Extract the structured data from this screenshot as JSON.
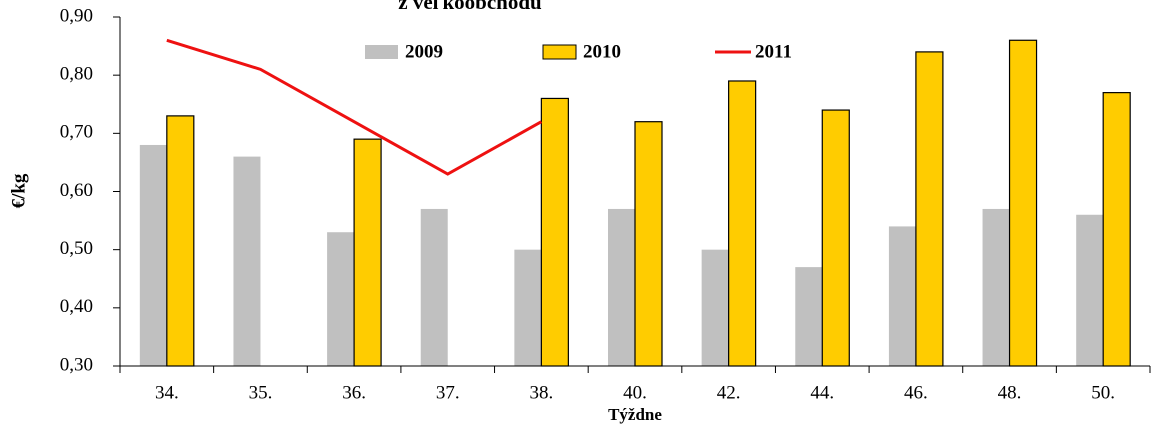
{
  "chart_data": {
    "type": "bar",
    "title": "z veľkoobchodu",
    "x_label": "Týždne",
    "y_label": "€/kg",
    "categories": [
      "34.",
      "35.",
      "36.",
      "37.",
      "38.",
      "40.",
      "42.",
      "44.",
      "46.",
      "48.",
      "50."
    ],
    "series": [
      {
        "name": "2009",
        "type": "bar",
        "color": "#c0c0c0",
        "values": [
          0.68,
          0.66,
          0.53,
          0.57,
          0.5,
          0.57,
          0.5,
          0.47,
          0.54,
          0.57,
          0.56
        ]
      },
      {
        "name": "2010",
        "type": "bar",
        "color": "#ffcc00",
        "values": [
          0.73,
          null,
          0.69,
          null,
          0.76,
          0.72,
          0.79,
          0.74,
          0.84,
          0.86,
          0.77
        ]
      },
      {
        "name": "2011",
        "type": "line",
        "color": "#ee1111",
        "values": [
          0.86,
          0.81,
          0.72,
          0.63,
          0.72,
          null,
          null,
          null,
          null,
          null,
          null
        ]
      }
    ],
    "ylim": [
      0.3,
      0.9
    ],
    "yticks": [
      {
        "value": 0.3,
        "label": "0,30"
      },
      {
        "value": 0.4,
        "label": "0,40"
      },
      {
        "value": 0.5,
        "label": "0,50"
      },
      {
        "value": 0.6,
        "label": "0,60"
      },
      {
        "value": 0.7,
        "label": "0,70"
      },
      {
        "value": 0.8,
        "label": "0,80"
      },
      {
        "value": 0.9,
        "label": "0,90"
      }
    ],
    "grid": false
  }
}
